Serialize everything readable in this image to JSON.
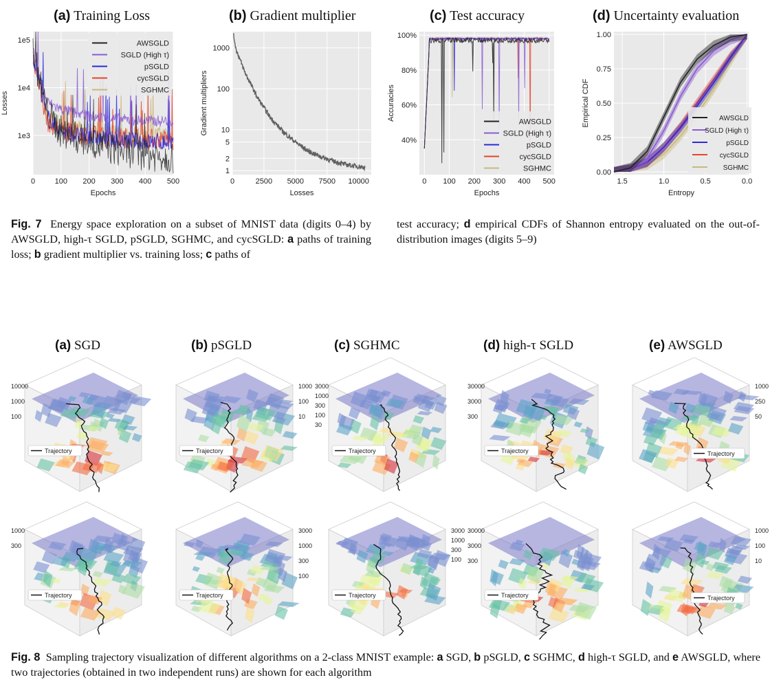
{
  "fig7": {
    "panels": [
      {
        "letter": "(a)",
        "title": "Training Loss"
      },
      {
        "letter": "(b)",
        "title": "Gradient multiplier"
      },
      {
        "letter": "(c)",
        "title": "Test accuracy"
      },
      {
        "letter": "(d)",
        "title": "Uncertainty evaluation"
      }
    ],
    "caption_label": "Fig. 7",
    "caption_col1": "Energy space exploration on a subset of MNIST data (digits 0–4) by AWSGLD, high-τ SGLD, pSGLD, SGHMC, and cycSGLD: ",
    "caption_a": "a",
    "caption_a_text": " paths of training loss; ",
    "caption_b": "b",
    "caption_b_text": " gradient multiplier vs. training loss; ",
    "caption_c": "c",
    "caption_c_text": " paths of",
    "caption_col2_pre": "test accuracy; ",
    "caption_d": "d",
    "caption_d_text": " empirical CDFs of Shannon entropy evaluated on the out-of-distribution images (digits 5–9)"
  },
  "fig8": {
    "panels": [
      {
        "letter": "(a)",
        "title": "SGD"
      },
      {
        "letter": "(b)",
        "title": "pSGLD"
      },
      {
        "letter": "(c)",
        "title": "SGHMC"
      },
      {
        "letter": "(d)",
        "title": "high-τ SGLD"
      },
      {
        "letter": "(e)",
        "title": "AWSGLD"
      }
    ],
    "legend_label": "Trajectory",
    "zticks": [
      [
        "10000",
        "1000",
        "100"
      ],
      [
        "1000",
        "100",
        "10"
      ],
      [
        "3000",
        "1000",
        "300",
        "100",
        "30"
      ],
      [
        "30000",
        "3000",
        "300"
      ],
      [
        "1000",
        "250",
        "50"
      ]
    ],
    "zticks_row2": [
      [
        "1000",
        "300"
      ],
      [
        "3000",
        "1000",
        "300",
        "100"
      ],
      [
        "3000",
        "1000",
        "300",
        "100"
      ],
      [
        "30000",
        "3000",
        "300"
      ],
      [
        "1000",
        "100",
        "10"
      ]
    ],
    "caption_label": "Fig. 8",
    "caption_text": "Sampling trajectory visualization of different algorithms on a 2-class MNIST example: ",
    "items": [
      {
        "k": "a",
        "t": " SGD, "
      },
      {
        "k": "b",
        "t": " pSGLD, "
      },
      {
        "k": "c",
        "t": " SGHMC, "
      },
      {
        "k": "d",
        "t": " high-τ SGLD, and "
      },
      {
        "k": "e",
        "t": " AWSGLD, where two trajectories (obtained in two independent runs) are shown for each algorithm"
      }
    ]
  },
  "colors": {
    "AWSGLD": "#222222",
    "SGLD (High τ)": "#8a5cd0",
    "pSGLD": "#2a2ad8",
    "cycSGLD": "#e8432a",
    "SGHMC": "#c9b87a",
    "plot_bg": "#e9e9ea"
  },
  "chart_data": [
    {
      "type": "line",
      "title": "Training Loss",
      "xlabel": "Epochs",
      "ylabel": "Losses",
      "yscale": "log",
      "xlim": [
        0,
        500
      ],
      "ylim": [
        150,
        150000
      ],
      "xticks": [
        "0",
        "100",
        "200",
        "300",
        "400",
        "500"
      ],
      "yticks": [
        "1e3",
        "1e4",
        "1e5"
      ],
      "legend_position": "top-right",
      "series": [
        {
          "name": "AWSGLD",
          "values": [
            [
              0,
              60000
            ],
            [
              50,
              3000
            ],
            [
              100,
              1200
            ],
            [
              200,
              700
            ],
            [
              300,
              500
            ],
            [
              400,
              400
            ],
            [
              500,
              350
            ]
          ]
        },
        {
          "name": "SGLD (High τ)",
          "values": [
            [
              0,
              60000
            ],
            [
              50,
              5000
            ],
            [
              100,
              3500
            ],
            [
              200,
              2500
            ],
            [
              300,
              2200
            ],
            [
              400,
              2000
            ],
            [
              500,
              2000
            ]
          ]
        },
        {
          "name": "pSGLD",
          "values": [
            [
              0,
              50000
            ],
            [
              50,
              2500
            ],
            [
              100,
              1200
            ],
            [
              200,
              900
            ],
            [
              300,
              800
            ],
            [
              400,
              750
            ],
            [
              500,
              700
            ]
          ]
        },
        {
          "name": "cycSGLD",
          "values": [
            [
              0,
              50000
            ],
            [
              50,
              2000
            ],
            [
              100,
              1200
            ],
            [
              200,
              1000
            ],
            [
              300,
              900
            ],
            [
              400,
              850
            ],
            [
              500,
              800
            ]
          ]
        },
        {
          "name": "SGHMC",
          "values": [
            [
              0,
              50000
            ],
            [
              50,
              2500
            ],
            [
              100,
              1500
            ],
            [
              200,
              1200
            ],
            [
              300,
              1100
            ],
            [
              400,
              1000
            ],
            [
              500,
              1000
            ]
          ]
        }
      ]
    },
    {
      "type": "line",
      "title": "Gradient multiplier",
      "xlabel": "Losses",
      "ylabel": "Gradient multipliers",
      "yscale": "log",
      "xlim": [
        0,
        11000
      ],
      "ylim": [
        0.8,
        2500
      ],
      "xticks": [
        "0",
        "2500",
        "5000",
        "7500",
        "10000"
      ],
      "yticks": [
        "1",
        "2",
        "5",
        "10",
        "100",
        "1000"
      ],
      "series": [
        {
          "name": "AWSGLD",
          "values": [
            [
              100,
              2000
            ],
            [
              300,
              900
            ],
            [
              1000,
              250
            ],
            [
              2000,
              60
            ],
            [
              3000,
              20
            ],
            [
              4000,
              9
            ],
            [
              5000,
              5
            ],
            [
              6000,
              3
            ],
            [
              7000,
              2.2
            ],
            [
              8000,
              1.7
            ],
            [
              9000,
              1.4
            ],
            [
              10500,
              1.2
            ]
          ]
        }
      ]
    },
    {
      "type": "line",
      "title": "Test accuracy",
      "xlabel": "Epochs",
      "ylabel": "Accuracies",
      "xlim": [
        -20,
        520
      ],
      "ylim": [
        0.2,
        1.02
      ],
      "xticks": [
        "0",
        "100",
        "200",
        "300",
        "400",
        "500"
      ],
      "yticks": [
        "40%",
        "60%",
        "80%",
        "100%"
      ],
      "legend_position": "bottom-right",
      "series": [
        {
          "name": "AWSGLD",
          "values": [
            [
              0,
              0.35
            ],
            [
              20,
              0.97
            ],
            [
              500,
              0.98
            ]
          ]
        },
        {
          "name": "SGLD (High τ)",
          "values": [
            [
              0,
              0.35
            ],
            [
              20,
              0.97
            ],
            [
              500,
              0.98
            ]
          ]
        },
        {
          "name": "pSGLD",
          "values": [
            [
              0,
              0.35
            ],
            [
              20,
              0.98
            ],
            [
              500,
              0.99
            ]
          ]
        },
        {
          "name": "cycSGLD",
          "values": [
            [
              0,
              0.35
            ],
            [
              20,
              0.98
            ],
            [
              500,
              0.99
            ]
          ]
        },
        {
          "name": "SGHMC",
          "values": [
            [
              0,
              0.35
            ],
            [
              20,
              0.98
            ],
            [
              500,
              0.99
            ]
          ]
        }
      ]
    },
    {
      "type": "line",
      "title": "Uncertainty evaluation",
      "xlabel": "Entropy",
      "ylabel": "Empirical CDF",
      "xlim": [
        1.6,
        -0.02
      ],
      "ylim": [
        -0.02,
        1.02
      ],
      "xticks": [
        "1.5",
        "1.0",
        "0.5",
        "0.0"
      ],
      "yticks": [
        "0.00",
        "0.25",
        "0.50",
        "0.75",
        "1.00"
      ],
      "legend_position": "right",
      "series": [
        {
          "name": "AWSGLD",
          "values": [
            [
              1.6,
              0
            ],
            [
              1.4,
              0.03
            ],
            [
              1.2,
              0.15
            ],
            [
              1.0,
              0.4
            ],
            [
              0.8,
              0.65
            ],
            [
              0.6,
              0.82
            ],
            [
              0.4,
              0.92
            ],
            [
              0.2,
              0.98
            ],
            [
              0,
              1
            ]
          ]
        },
        {
          "name": "SGLD (High τ)",
          "values": [
            [
              1.6,
              0
            ],
            [
              1.4,
              0.02
            ],
            [
              1.2,
              0.1
            ],
            [
              1.0,
              0.3
            ],
            [
              0.8,
              0.55
            ],
            [
              0.6,
              0.75
            ],
            [
              0.4,
              0.88
            ],
            [
              0.2,
              0.96
            ],
            [
              0,
              1
            ]
          ]
        },
        {
          "name": "pSGLD",
          "values": [
            [
              1.6,
              0
            ],
            [
              1.4,
              0.02
            ],
            [
              1.2,
              0.07
            ],
            [
              1.0,
              0.18
            ],
            [
              0.8,
              0.32
            ],
            [
              0.6,
              0.48
            ],
            [
              0.4,
              0.65
            ],
            [
              0.2,
              0.83
            ],
            [
              0,
              1
            ]
          ]
        },
        {
          "name": "cycSGLD",
          "values": [
            [
              1.6,
              0
            ],
            [
              1.4,
              0.02
            ],
            [
              1.2,
              0.07
            ],
            [
              1.0,
              0.18
            ],
            [
              0.8,
              0.33
            ],
            [
              0.6,
              0.5
            ],
            [
              0.4,
              0.67
            ],
            [
              0.2,
              0.84
            ],
            [
              0,
              1
            ]
          ]
        },
        {
          "name": "SGHMC",
          "values": [
            [
              1.6,
              0
            ],
            [
              1.4,
              0.01
            ],
            [
              1.2,
              0.05
            ],
            [
              1.0,
              0.13
            ],
            [
              0.8,
              0.26
            ],
            [
              0.6,
              0.42
            ],
            [
              0.4,
              0.6
            ],
            [
              0.2,
              0.8
            ],
            [
              0,
              1
            ]
          ]
        }
      ]
    }
  ]
}
